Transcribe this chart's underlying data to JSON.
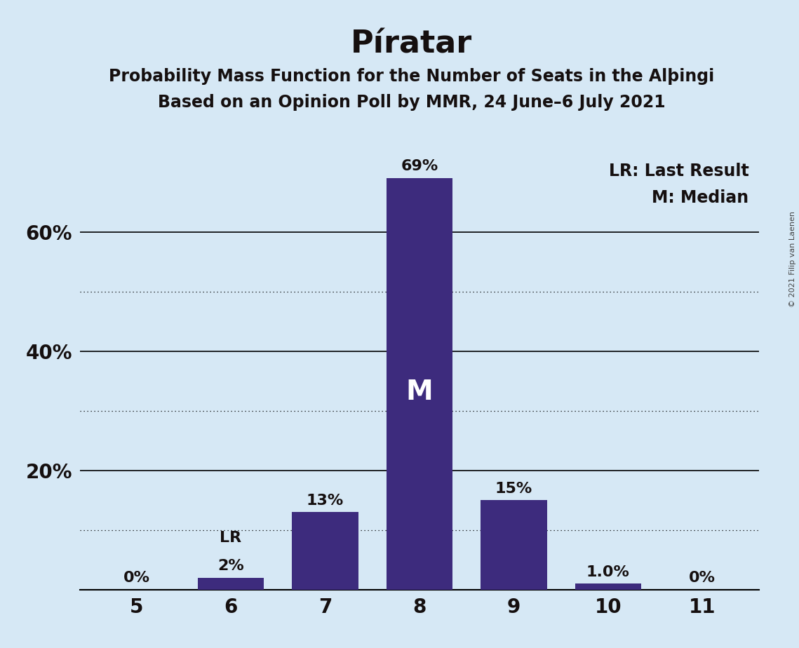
{
  "title": "Píratar",
  "subtitle1": "Probability Mass Function for the Number of Seats in the Alþingi",
  "subtitle2": "Based on an Opinion Poll by MMR, 24 June–6 July 2021",
  "copyright": "© 2021 Filip van Laenen",
  "categories": [
    5,
    6,
    7,
    8,
    9,
    10,
    11
  ],
  "values": [
    0.0,
    2.0,
    13.0,
    69.0,
    15.0,
    1.0,
    0.0
  ],
  "labels": [
    "0%",
    "2%",
    "13%",
    "69%",
    "15%",
    "1.0%",
    "0%"
  ],
  "bar_color": "#3d2b7d",
  "background_color": "#d6e8f5",
  "text_color": "#150f0f",
  "median_bar": 8,
  "median_label": "M",
  "lr_bar": 6,
  "lr_label": "LR",
  "legend_lr": "LR: Last Result",
  "legend_m": "M: Median",
  "ylim": [
    0,
    75
  ],
  "solid_yticks": [
    0,
    20,
    40,
    60
  ],
  "dotted_yticks": [
    10,
    30,
    50
  ],
  "figsize": [
    11.39,
    9.24
  ],
  "dpi": 100
}
